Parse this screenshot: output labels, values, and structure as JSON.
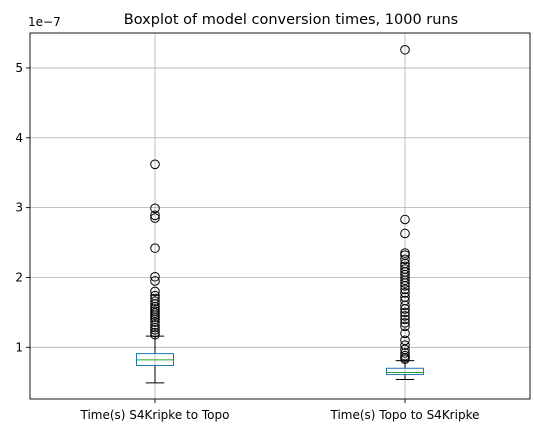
{
  "chart_data": {
    "type": "box",
    "title": "Boxplot of model conversion times, 1000 runs",
    "xlabel": "",
    "ylabel": "",
    "y_offset_label": "1e−7",
    "y_scale": 1e-07,
    "ylim": [
      0.26,
      5.5
    ],
    "yticks": [
      1,
      2,
      3,
      4,
      5
    ],
    "grid": true,
    "categories": [
      "Time(s) S4Kripke to Topo",
      "Time(s) Topo to S4Kripke"
    ],
    "series": [
      {
        "name": "Time(s) S4Kripke to Topo",
        "whisker_low": 0.49,
        "q1": 0.74,
        "median": 0.82,
        "q3": 0.91,
        "whisker_high": 1.16,
        "outliers": [
          3.62,
          2.99,
          2.89,
          2.85,
          2.42,
          2.01,
          1.95,
          1.8,
          1.74,
          1.7,
          1.66,
          1.62,
          1.58,
          1.55,
          1.52,
          1.49,
          1.46,
          1.43,
          1.4,
          1.36,
          1.32,
          1.28,
          1.25,
          1.21,
          1.18
        ]
      },
      {
        "name": "Time(s) Topo to S4Kripke",
        "whisker_low": 0.54,
        "q1": 0.61,
        "median": 0.64,
        "q3": 0.7,
        "whisker_high": 0.81,
        "outliers": [
          5.26,
          2.83,
          2.63,
          2.35,
          2.32,
          2.26,
          2.2,
          2.16,
          2.12,
          2.08,
          2.04,
          2.0,
          1.96,
          1.92,
          1.88,
          1.83,
          1.78,
          1.72,
          1.67,
          1.6,
          1.55,
          1.5,
          1.45,
          1.4,
          1.35,
          1.3,
          1.2,
          1.1,
          1.03,
          0.97,
          0.92,
          0.88,
          0.85,
          0.83
        ]
      }
    ],
    "colors": {
      "box": "#1f77b4",
      "median": "#2ca02c",
      "whisker": "#000000",
      "outlier": "#000000",
      "grid": "#b0b0b0"
    }
  }
}
